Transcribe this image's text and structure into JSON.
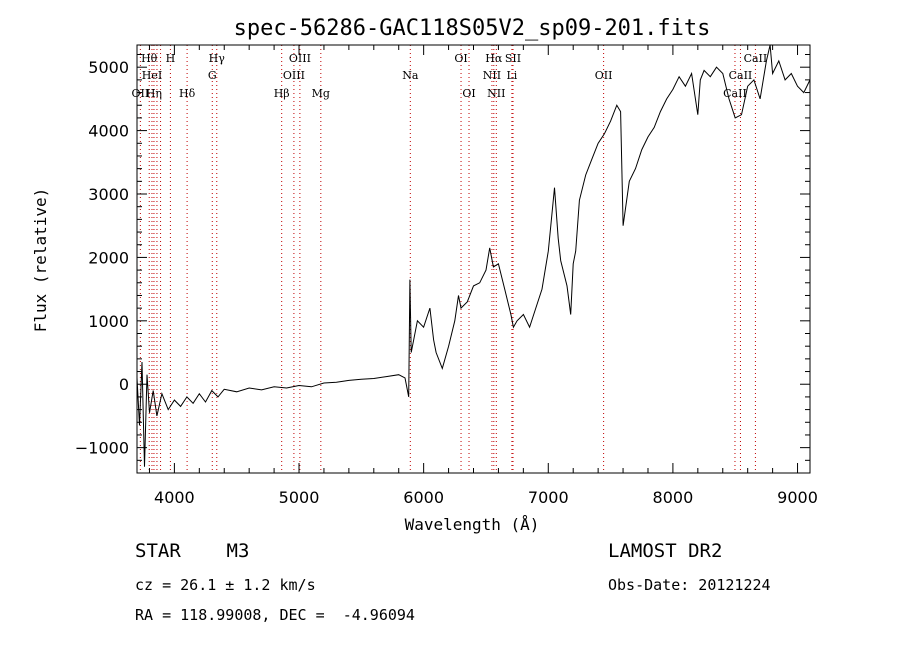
{
  "chart_data": {
    "type": "line",
    "title": "spec-56286-GAC118S05V2_sp09-201.fits",
    "xlabel": "Wavelength (Å)",
    "ylabel": "Flux (relative)",
    "xlim": [
      3700,
      9100
    ],
    "ylim": [
      -1400,
      5350
    ],
    "x_ticks": [
      4000,
      5000,
      6000,
      7000,
      8000,
      9000
    ],
    "x_tick_labels": [
      "4000",
      "5000",
      "6000",
      "7000",
      "8000",
      "9000"
    ],
    "y_ticks": [
      -1000,
      0,
      1000,
      2000,
      3000,
      4000,
      5000
    ],
    "y_tick_labels": [
      "−1000",
      "0",
      "1000",
      "2000",
      "3000",
      "4000",
      "5000"
    ],
    "grid": false,
    "line_color": "#000000",
    "series": [
      {
        "points": [
          [
            3700,
            100
          ],
          [
            3720,
            -650
          ],
          [
            3740,
            350
          ],
          [
            3760,
            -1300
          ],
          [
            3780,
            150
          ],
          [
            3800,
            -450
          ],
          [
            3830,
            -100
          ],
          [
            3860,
            -500
          ],
          [
            3900,
            -150
          ],
          [
            3950,
            -400
          ],
          [
            4000,
            -250
          ],
          [
            4050,
            -350
          ],
          [
            4100,
            -200
          ],
          [
            4150,
            -300
          ],
          [
            4200,
            -150
          ],
          [
            4250,
            -280
          ],
          [
            4300,
            -100
          ],
          [
            4350,
            -200
          ],
          [
            4400,
            -80
          ],
          [
            4500,
            -120
          ],
          [
            4600,
            -60
          ],
          [
            4700,
            -90
          ],
          [
            4800,
            -40
          ],
          [
            4900,
            -60
          ],
          [
            5000,
            -20
          ],
          [
            5100,
            -40
          ],
          [
            5200,
            20
          ],
          [
            5300,
            30
          ],
          [
            5400,
            60
          ],
          [
            5500,
            80
          ],
          [
            5600,
            90
          ],
          [
            5700,
            120
          ],
          [
            5800,
            150
          ],
          [
            5850,
            100
          ],
          [
            5880,
            -200
          ],
          [
            5890,
            1650
          ],
          [
            5900,
            500
          ],
          [
            5920,
            700
          ],
          [
            5950,
            1000
          ],
          [
            6000,
            900
          ],
          [
            6050,
            1200
          ],
          [
            6080,
            700
          ],
          [
            6100,
            500
          ],
          [
            6150,
            250
          ],
          [
            6200,
            600
          ],
          [
            6250,
            1000
          ],
          [
            6280,
            1400
          ],
          [
            6300,
            1200
          ],
          [
            6350,
            1300
          ],
          [
            6400,
            1550
          ],
          [
            6450,
            1600
          ],
          [
            6500,
            1800
          ],
          [
            6530,
            2150
          ],
          [
            6560,
            1850
          ],
          [
            6600,
            1900
          ],
          [
            6650,
            1500
          ],
          [
            6700,
            1100
          ],
          [
            6720,
            900
          ],
          [
            6750,
            1000
          ],
          [
            6800,
            1100
          ],
          [
            6850,
            900
          ],
          [
            6900,
            1200
          ],
          [
            6950,
            1500
          ],
          [
            7000,
            2100
          ],
          [
            7020,
            2500
          ],
          [
            7050,
            3100
          ],
          [
            7080,
            2300
          ],
          [
            7100,
            1950
          ],
          [
            7150,
            1550
          ],
          [
            7180,
            1100
          ],
          [
            7200,
            1900
          ],
          [
            7220,
            2100
          ],
          [
            7250,
            2900
          ],
          [
            7300,
            3300
          ],
          [
            7350,
            3550
          ],
          [
            7400,
            3800
          ],
          [
            7450,
            3950
          ],
          [
            7500,
            4150
          ],
          [
            7550,
            4400
          ],
          [
            7580,
            4300
          ],
          [
            7600,
            2500
          ],
          [
            7650,
            3200
          ],
          [
            7700,
            3400
          ],
          [
            7750,
            3700
          ],
          [
            7800,
            3900
          ],
          [
            7850,
            4050
          ],
          [
            7900,
            4300
          ],
          [
            7950,
            4500
          ],
          [
            8000,
            4650
          ],
          [
            8050,
            4850
          ],
          [
            8100,
            4700
          ],
          [
            8150,
            4900
          ],
          [
            8200,
            4250
          ],
          [
            8220,
            4800
          ],
          [
            8250,
            4950
          ],
          [
            8300,
            4850
          ],
          [
            8350,
            5000
          ],
          [
            8400,
            4900
          ],
          [
            8450,
            4500
          ],
          [
            8500,
            4200
          ],
          [
            8550,
            4250
          ],
          [
            8600,
            4700
          ],
          [
            8650,
            4800
          ],
          [
            8700,
            4500
          ],
          [
            8750,
            5100
          ],
          [
            8780,
            5350
          ],
          [
            8800,
            4900
          ],
          [
            8850,
            5100
          ],
          [
            8900,
            4800
          ],
          [
            8950,
            4900
          ],
          [
            9000,
            4700
          ],
          [
            9050,
            4600
          ],
          [
            9100,
            4800
          ]
        ]
      }
    ],
    "lines": [
      {
        "wl": 3798,
        "labels": [
          {
            "t": "Hθ",
            "row": 1
          }
        ]
      },
      {
        "wl": 3820,
        "labels": [
          {
            "t": "HeI",
            "row": 2
          }
        ]
      },
      {
        "wl": 3836,
        "labels": [
          {
            "t": "Hη",
            "row": 3
          }
        ]
      },
      {
        "wl": 3860,
        "labels": []
      },
      {
        "wl": 3889,
        "labels": []
      },
      {
        "wl": 3727,
        "labels": [
          {
            "t": "OII",
            "row": 3
          }
        ]
      },
      {
        "wl": 3968,
        "labels": [
          {
            "t": "H",
            "row": 1
          }
        ]
      },
      {
        "wl": 4102,
        "labels": [
          {
            "t": "Hδ",
            "row": 3
          }
        ]
      },
      {
        "wl": 4304,
        "labels": [
          {
            "t": "G",
            "row": 2
          }
        ]
      },
      {
        "wl": 4340,
        "labels": [
          {
            "t": "Hγ",
            "row": 1
          }
        ]
      },
      {
        "wl": 4861,
        "labels": [
          {
            "t": "Hβ",
            "row": 3
          }
        ]
      },
      {
        "wl": 4959,
        "labels": [
          {
            "t": "OIII",
            "row": 2
          }
        ]
      },
      {
        "wl": 5007,
        "labels": [
          {
            "t": "OIII",
            "row": 1
          }
        ]
      },
      {
        "wl": 5175,
        "labels": [
          {
            "t": "Mg",
            "row": 3
          }
        ]
      },
      {
        "wl": 5893,
        "labels": [
          {
            "t": "Na",
            "row": 2
          }
        ]
      },
      {
        "wl": 6300,
        "labels": [
          {
            "t": "OI",
            "row": 1
          }
        ]
      },
      {
        "wl": 6364,
        "labels": [
          {
            "t": "OI",
            "row": 3
          }
        ]
      },
      {
        "wl": 6548,
        "labels": [
          {
            "t": "NII",
            "row": 2
          }
        ]
      },
      {
        "wl": 6563,
        "labels": [
          {
            "t": "Hα",
            "row": 1
          }
        ]
      },
      {
        "wl": 6583,
        "labels": [
          {
            "t": "NII",
            "row": 3
          }
        ]
      },
      {
        "wl": 6717,
        "labels": [
          {
            "t": "SII",
            "row": 1
          }
        ]
      },
      {
        "wl": 6708,
        "labels": [
          {
            "t": "Li",
            "row": 2
          }
        ]
      },
      {
        "wl": 7444,
        "labels": [
          {
            "t": "OII",
            "row": 2
          }
        ]
      },
      {
        "wl": 8498,
        "labels": [
          {
            "t": "CaII",
            "row": 3
          }
        ]
      },
      {
        "wl": 8542,
        "labels": [
          {
            "t": "CaII",
            "row": 2
          }
        ]
      },
      {
        "wl": 8662,
        "labels": [
          {
            "t": "CaII",
            "row": 1
          }
        ]
      }
    ]
  },
  "footer": {
    "object": "STAR    M3",
    "survey": "LAMOST DR2",
    "cz": "cz = 26.1 ± 1.2 km/s",
    "obs_date": "Obs-Date: 20121224",
    "coords": "RA = 118.99008, DEC =  -4.96094"
  }
}
